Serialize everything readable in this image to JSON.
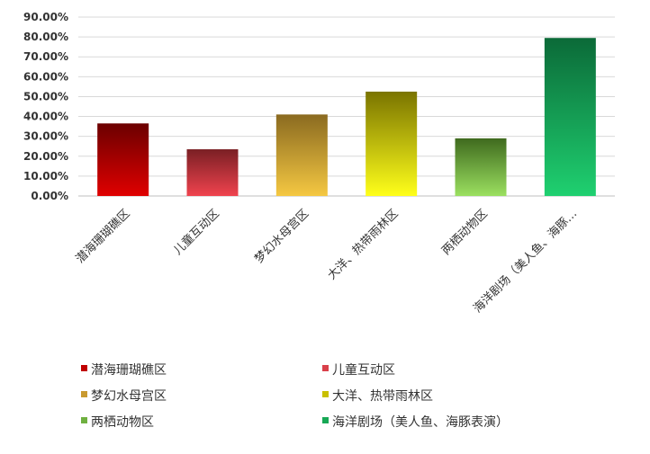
{
  "chart_data": {
    "type": "bar",
    "categories": [
      "潜海珊瑚礁区",
      "儿童互动区",
      "梦幻水母宫区",
      "大洋、热带雨林区",
      "两栖动物区",
      "海洋剧场（美人鱼、海豚…"
    ],
    "values": [
      0.365,
      0.235,
      0.41,
      0.525,
      0.29,
      0.795
    ],
    "ylim": [
      0,
      0.9
    ],
    "yticks": [
      "0.00%",
      "10.00%",
      "20.00%",
      "30.00%",
      "40.00%",
      "50.00%",
      "60.00%",
      "70.00%",
      "80.00%",
      "90.00%"
    ],
    "grid": true,
    "legend_position": "bottom",
    "legend": [
      "潜海珊瑚礁区",
      "儿童互动区",
      "梦幻水母宫区",
      "大洋、热带雨林区",
      "两栖动物区",
      "海洋剧场（美人鱼、海豚表演）"
    ],
    "colors": [
      {
        "top": "#6b0000",
        "bottom": "#e00000",
        "swatch": "#c00000"
      },
      {
        "top": "#7a1f24",
        "bottom": "#f0434e",
        "swatch": "#d9404a"
      },
      {
        "top": "#8a6a20",
        "bottom": "#f5c842",
        "swatch": "#c99a30"
      },
      {
        "top": "#7a7400",
        "bottom": "#ffff1a",
        "swatch": "#c9c000"
      },
      {
        "top": "#3f6a1e",
        "bottom": "#9be060",
        "swatch": "#6fb040"
      },
      {
        "top": "#0b6a38",
        "bottom": "#1fd070",
        "swatch": "#17a855"
      }
    ]
  }
}
